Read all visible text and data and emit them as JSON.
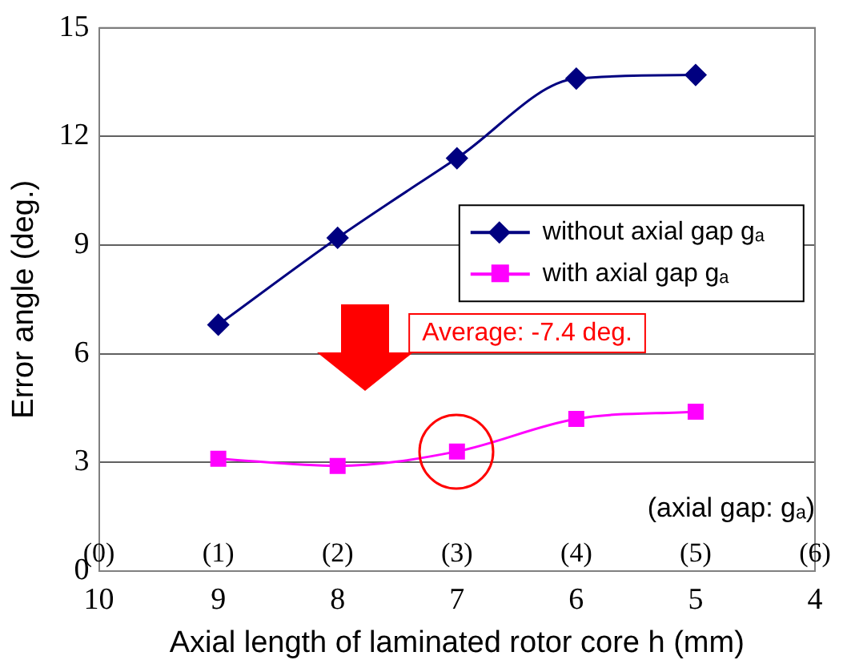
{
  "chart_data": {
    "type": "line",
    "xlabel": "Axial length of laminated rotor core h (mm)",
    "ylabel": "Error angle (deg.)",
    "x2label": "(axial gap: gₐ)",
    "xlim": [
      10,
      4
    ],
    "xticks": [
      10,
      9,
      8,
      7,
      6,
      5,
      4
    ],
    "x2lim": [
      0,
      6
    ],
    "x2ticks": [
      {
        "value": 0,
        "label": "(0)"
      },
      {
        "value": 1,
        "label": "(1)"
      },
      {
        "value": 2,
        "label": "(2)"
      },
      {
        "value": 3,
        "label": "(3)"
      },
      {
        "value": 4,
        "label": "(4)"
      },
      {
        "value": 5,
        "label": "(5)"
      },
      {
        "value": 6,
        "label": "(6)"
      }
    ],
    "ylim": [
      0,
      15
    ],
    "yticks": [
      0,
      3,
      6,
      9,
      12,
      15
    ],
    "grid": "y",
    "legend": "right",
    "series": [
      {
        "name": "without axial gap gₐ",
        "color": "#000080",
        "marker": "diamond",
        "x": [
          9,
          8,
          7,
          6,
          5
        ],
        "values": [
          6.8,
          9.2,
          11.4,
          13.6,
          13.7
        ]
      },
      {
        "name": "with axial gap gₐ",
        "color": "#ff00ff",
        "marker": "square",
        "x": [
          9,
          8,
          7,
          6,
          5
        ],
        "values": [
          3.1,
          2.9,
          3.3,
          4.2,
          4.4
        ]
      }
    ],
    "annotations": [
      "Average: -7.4 deg."
    ]
  }
}
